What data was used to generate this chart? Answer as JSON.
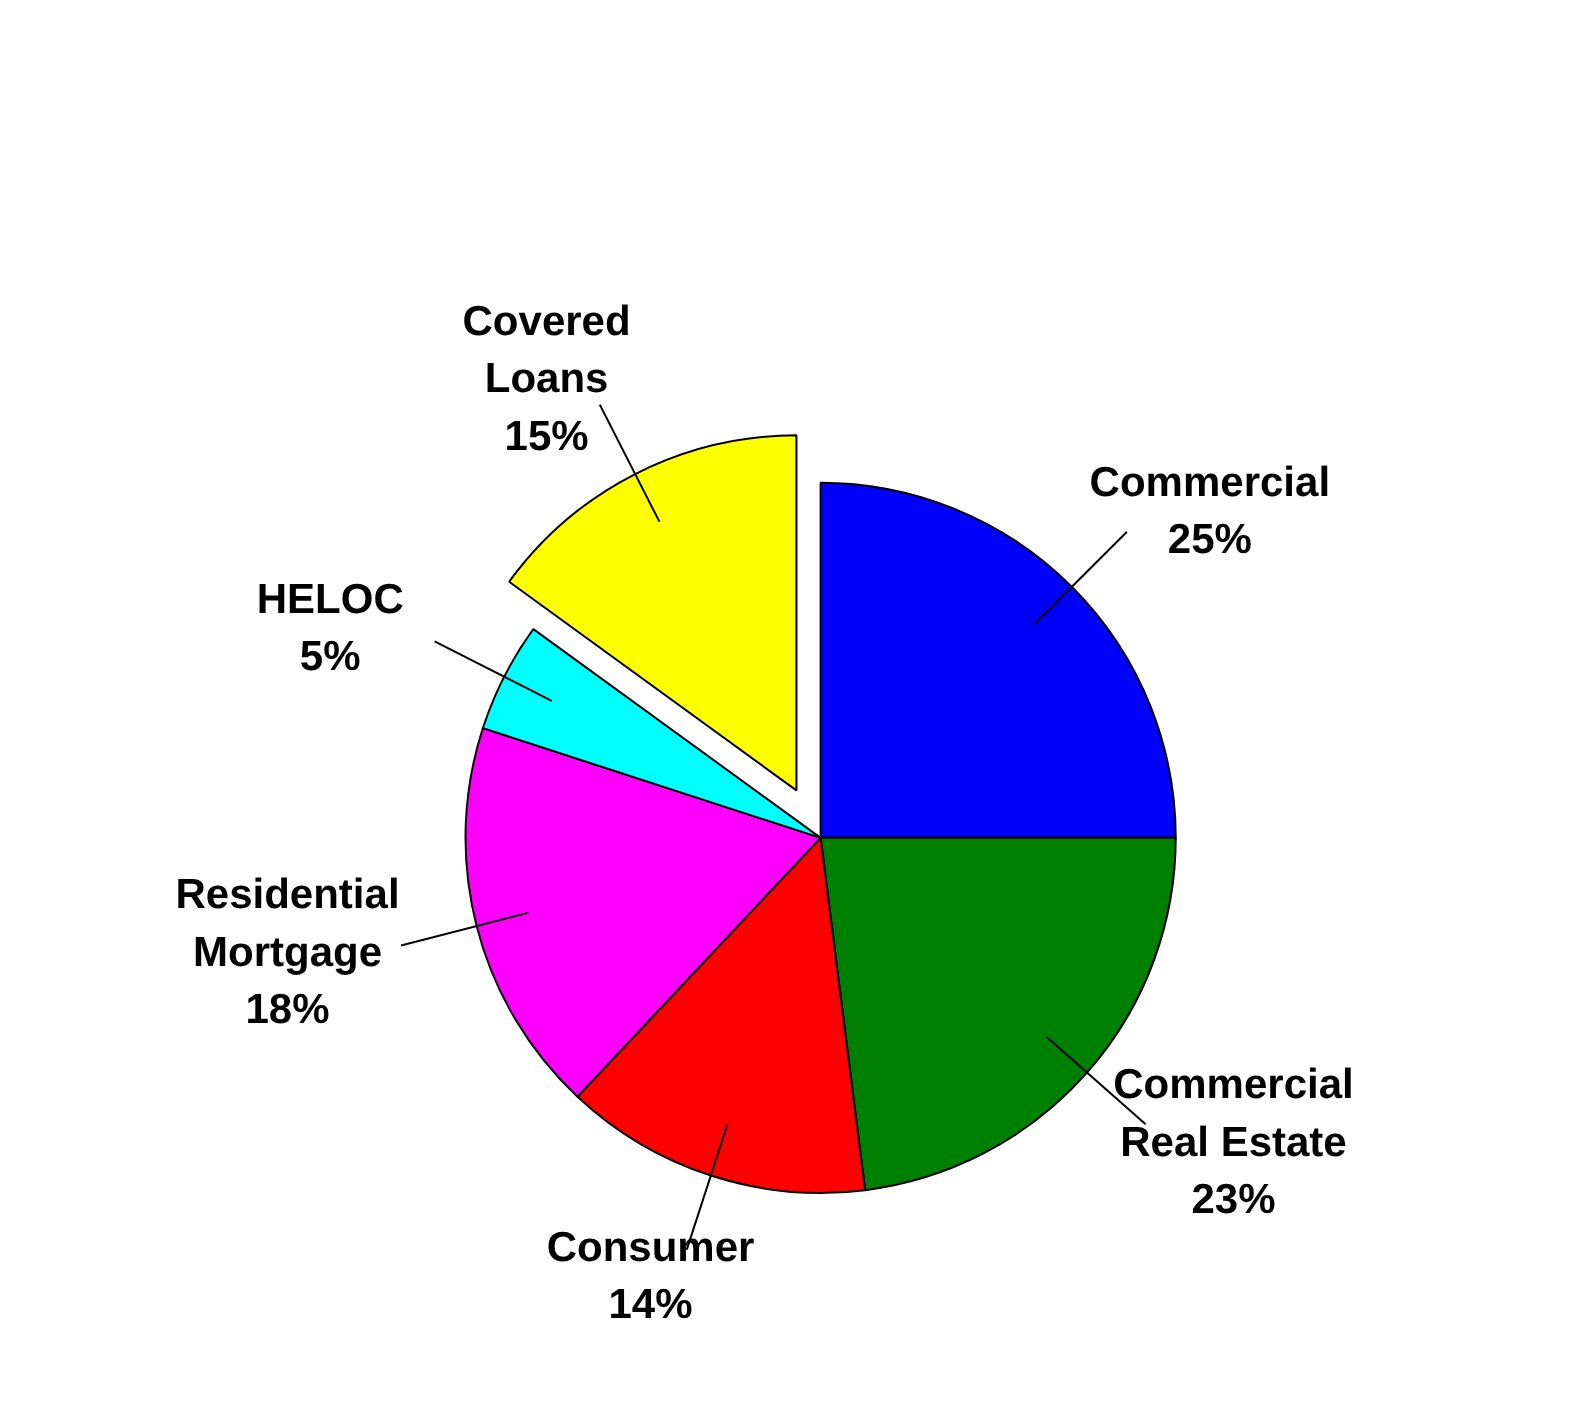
{
  "chart_data": {
    "type": "pie",
    "categories": [
      "Commercial",
      "Commercial Real Estate",
      "Consumer",
      "Residential Mortgage",
      "HELOC",
      "Covered Loans"
    ],
    "values": [
      25,
      23,
      14,
      18,
      5,
      15
    ],
    "value_labels": [
      "25%",
      "23%",
      "14%",
      "18%",
      "5%",
      "15%"
    ],
    "colors": [
      "#0000ff",
      "#008000",
      "#ff0000",
      "#ff00ff",
      "#00ffff",
      "#ffff00"
    ]
  }
}
